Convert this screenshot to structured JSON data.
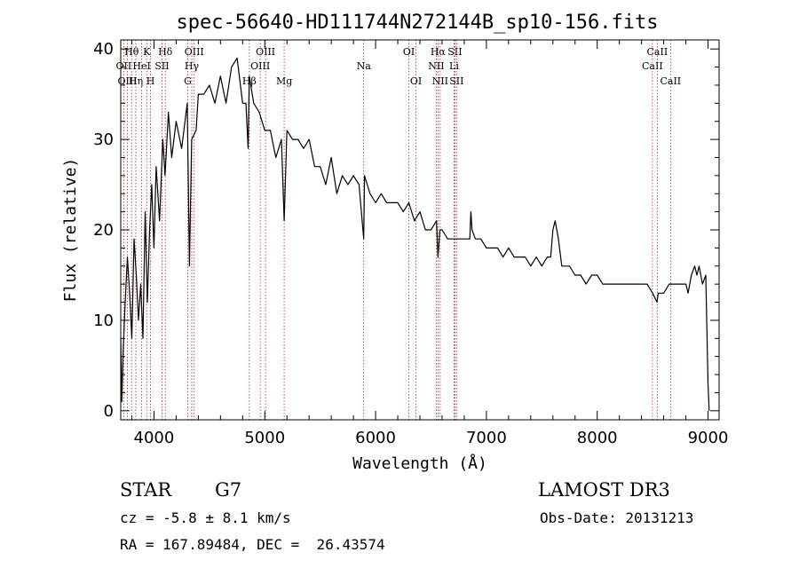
{
  "chart_data": {
    "type": "line",
    "title": "spec-56640-HD111744N272144B_sp10-156.fits",
    "xlabel": "Wavelength (Å)",
    "ylabel": "Flux (relative)",
    "xlim": [
      3700,
      9100
    ],
    "ylim": [
      -1,
      41
    ],
    "xticks": [
      4000,
      5000,
      6000,
      7000,
      8000,
      9000
    ],
    "yticks": [
      0,
      10,
      20,
      30,
      40
    ],
    "grid": false,
    "series": [
      {
        "name": "spectrum",
        "x": [
          3700,
          3710,
          3720,
          3740,
          3760,
          3780,
          3800,
          3820,
          3840,
          3860,
          3880,
          3900,
          3920,
          3940,
          3960,
          3980,
          4000,
          4020,
          4050,
          4080,
          4100,
          4130,
          4160,
          4200,
          4250,
          4300,
          4320,
          4340,
          4380,
          4400,
          4450,
          4500,
          4550,
          4600,
          4650,
          4700,
          4750,
          4780,
          4800,
          4830,
          4850,
          4860,
          4900,
          4950,
          5000,
          5050,
          5100,
          5150,
          5175,
          5200,
          5250,
          5300,
          5350,
          5400,
          5450,
          5500,
          5550,
          5600,
          5650,
          5700,
          5750,
          5800,
          5850,
          5893,
          5900,
          5950,
          6000,
          6050,
          6100,
          6150,
          6200,
          6250,
          6300,
          6350,
          6400,
          6450,
          6500,
          6550,
          6563,
          6580,
          6600,
          6650,
          6700,
          6750,
          6800,
          6850,
          6860,
          6870,
          6900,
          6950,
          7000,
          7050,
          7100,
          7150,
          7200,
          7250,
          7300,
          7350,
          7400,
          7450,
          7500,
          7550,
          7580,
          7600,
          7620,
          7650,
          7680,
          7700,
          7750,
          7800,
          7850,
          7900,
          7950,
          8000,
          8050,
          8100,
          8150,
          8200,
          8250,
          8300,
          8350,
          8400,
          8450,
          8500,
          8540,
          8550,
          8600,
          8650,
          8700,
          8750,
          8800,
          8820,
          8850,
          8880,
          8900,
          8920,
          8950,
          8980,
          9000,
          9010
        ],
        "y": [
          8,
          1,
          6,
          12,
          17,
          13,
          8,
          19,
          15,
          10,
          14,
          8,
          22,
          12,
          20,
          25,
          18,
          27,
          21,
          30,
          26,
          33,
          28,
          32,
          29,
          34,
          16,
          30,
          31,
          35,
          35,
          36,
          34,
          37,
          34,
          38,
          39,
          36,
          34,
          34,
          29,
          37,
          34,
          33,
          31,
          31,
          28,
          30,
          21,
          31,
          30,
          30,
          29,
          30,
          27,
          27,
          25,
          28,
          24,
          26,
          25,
          26,
          25,
          19,
          26,
          24,
          23,
          24,
          23,
          23,
          23,
          22,
          23,
          21,
          22,
          20,
          20,
          21,
          17,
          20,
          20,
          19,
          19,
          19,
          19,
          19,
          22,
          20,
          19,
          19,
          18,
          18,
          18,
          17,
          18,
          17,
          17,
          17,
          16,
          17,
          16,
          17,
          17,
          20,
          21,
          19,
          16,
          16,
          16,
          15,
          15,
          14,
          15,
          15,
          14,
          14,
          14,
          14,
          14,
          14,
          14,
          14,
          14,
          13,
          12,
          13,
          13,
          14,
          14,
          14,
          14,
          13,
          15,
          16,
          15,
          16,
          14,
          15,
          3,
          0
        ]
      }
    ],
    "line_markers": [
      {
        "label": "Hθ",
        "x": 3798,
        "row": 1
      },
      {
        "label": "OII",
        "x": 3727,
        "row": 2
      },
      {
        "label": "OIII",
        "x": 3760,
        "row": 3
      },
      {
        "label": "Hη",
        "x": 3836,
        "row": 3
      },
      {
        "label": "HeI",
        "x": 3889,
        "row": 2
      },
      {
        "label": "K",
        "x": 3934,
        "row": 1
      },
      {
        "label": "H",
        "x": 3969,
        "row": 3
      },
      {
        "label": "SII",
        "x": 4072,
        "row": 2
      },
      {
        "label": "Hδ",
        "x": 4102,
        "row": 1
      },
      {
        "label": "OIII",
        "x": 4363,
        "row": 1
      },
      {
        "label": "Hγ",
        "x": 4341,
        "row": 2
      },
      {
        "label": "G",
        "x": 4305,
        "row": 3
      },
      {
        "label": "Hβ",
        "x": 4861,
        "row": 3
      },
      {
        "label": "OIII",
        "x": 5007,
        "row": 1
      },
      {
        "label": "OIII",
        "x": 4959,
        "row": 2
      },
      {
        "label": "Mg",
        "x": 5175,
        "row": 3
      },
      {
        "label": "Na",
        "x": 5893,
        "row": 2
      },
      {
        "label": "OI",
        "x": 6300,
        "row": 1
      },
      {
        "label": "OI",
        "x": 6364,
        "row": 3
      },
      {
        "label": "Hα",
        "x": 6563,
        "row": 1
      },
      {
        "label": "NII",
        "x": 6548,
        "row": 2
      },
      {
        "label": "NII",
        "x": 6583,
        "row": 3
      },
      {
        "label": "SII",
        "x": 6716,
        "row": 1
      },
      {
        "label": "Li",
        "x": 6708,
        "row": 2
      },
      {
        "label": "SII",
        "x": 6731,
        "row": 3
      },
      {
        "label": "CaII",
        "x": 8542,
        "row": 1
      },
      {
        "label": "CaII",
        "x": 8498,
        "row": 2
      },
      {
        "label": "CaII",
        "x": 8662,
        "row": 3
      }
    ]
  },
  "info": {
    "object_class": "STAR",
    "subclass": "G7",
    "survey": "LAMOST DR3",
    "redshift": "cz = -5.8 ± 8.1 km/s",
    "obs_date": "Obs-Date: 20131213",
    "coords": "RA = 167.89484, DEC =  26.43574"
  },
  "colors": {
    "spectrum": "#000000",
    "marker_line": "#b0282b",
    "axis": "#000000"
  }
}
